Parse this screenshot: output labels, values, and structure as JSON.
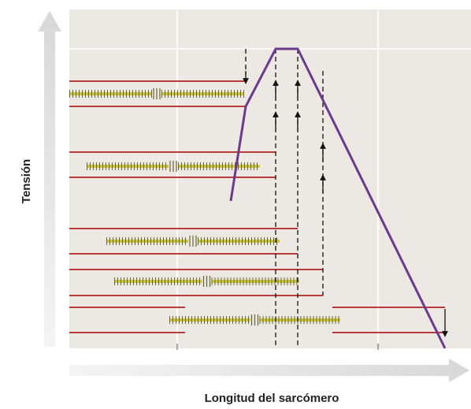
{
  "axis_labels": {
    "y": "Tensión",
    "x": "Longitud del sarcómero"
  }
}
